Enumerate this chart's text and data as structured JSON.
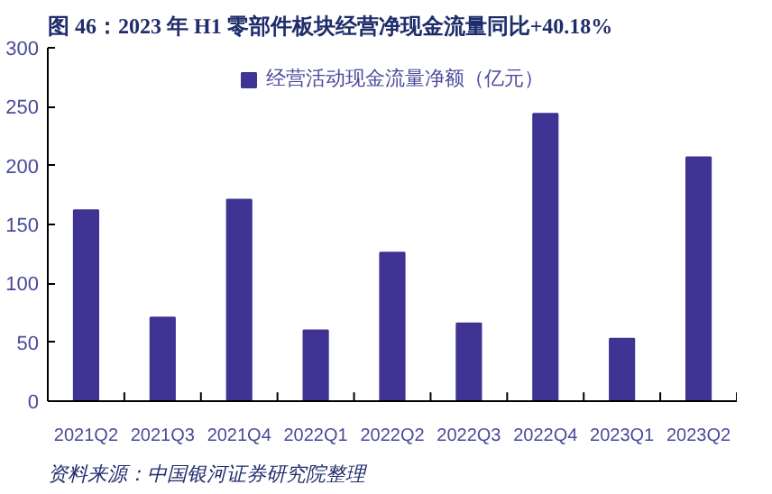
{
  "chart_data": {
    "type": "bar",
    "title": "图 46：2023 年 H1 零部件板块经营净现金流量同比+40.18%",
    "categories": [
      "2021Q2",
      "2021Q3",
      "2021Q4",
      "2022Q1",
      "2022Q2",
      "2022Q3",
      "2022Q4",
      "2023Q1",
      "2023Q2"
    ],
    "series": [
      {
        "name": "经营活动现金流量净额（亿元）",
        "color": "#3f3393",
        "values": [
          162,
          71,
          171,
          60,
          126,
          66,
          244,
          53,
          207
        ]
      }
    ],
    "ylim": [
      0,
      300
    ],
    "yticks": [
      0,
      50,
      100,
      150,
      200,
      250,
      300
    ],
    "grid": false,
    "legend": "top",
    "annotations": [
      "资料来源：中国银河证券研究院整理"
    ]
  }
}
